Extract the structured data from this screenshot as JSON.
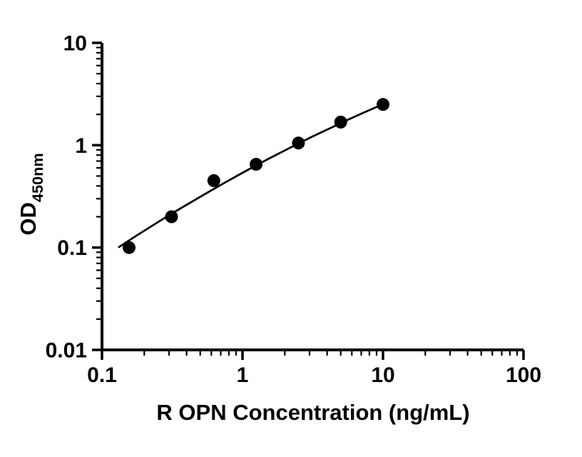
{
  "chart_data": {
    "type": "scatter",
    "title": "",
    "xlabel": "R OPN Concentration (ng/mL)",
    "ylabel": "OD450nm",
    "ylabel_main": "OD",
    "ylabel_sub": "450nm",
    "x_scale": "log",
    "y_scale": "log",
    "xlim": [
      0.1,
      100
    ],
    "ylim": [
      0.01,
      10
    ],
    "x_tick_values": [
      0.1,
      1,
      10,
      100
    ],
    "x_tick_labels": [
      "0.1",
      "1",
      "10",
      "100"
    ],
    "y_tick_values": [
      0.01,
      0.1,
      1,
      10
    ],
    "y_tick_labels": [
      "0.01",
      "0.1",
      "1",
      "10"
    ],
    "grid": false,
    "legend": "none",
    "marker": {
      "shape": "circle",
      "color": "#000000",
      "radius_px": 9
    },
    "line_color": "#000000",
    "axis_color": "#000000",
    "series": [
      {
        "name": "standard-points",
        "kind": "scatter",
        "x": [
          0.156,
          0.3125,
          0.625,
          1.25,
          2.5,
          5,
          10
        ],
        "y": [
          0.1,
          0.2,
          0.45,
          0.65,
          1.05,
          1.68,
          2.5
        ]
      },
      {
        "name": "fit-curve",
        "kind": "line",
        "x": [
          0.132,
          0.178,
          0.237,
          0.316,
          0.422,
          0.562,
          0.75,
          1.0,
          1.33,
          1.78,
          2.37,
          3.16,
          4.22,
          5.62,
          7.5,
          10.0
        ],
        "y": [
          0.101,
          0.132,
          0.169,
          0.216,
          0.273,
          0.344,
          0.431,
          0.537,
          0.665,
          0.818,
          1.0,
          1.22,
          1.47,
          1.77,
          2.12,
          2.51
        ]
      }
    ]
  }
}
